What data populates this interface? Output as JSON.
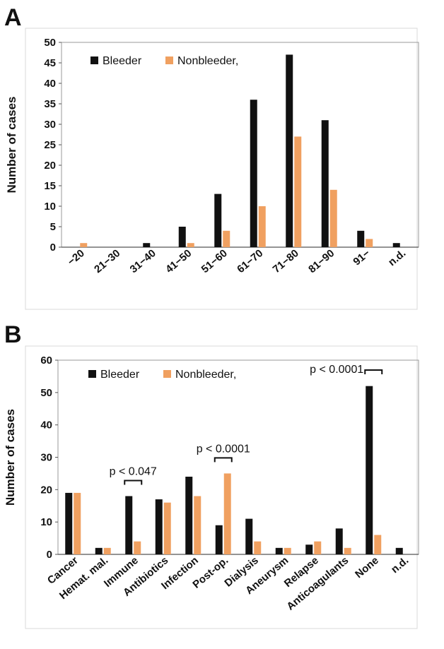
{
  "panels": {
    "a_letter": "A",
    "b_letter": "B"
  },
  "colors": {
    "bleeder": "#111111",
    "nonbleeder": "#F0A060"
  },
  "chart_data": [
    {
      "type": "bar",
      "panel": "A",
      "categories": [
        "−20",
        "21−30",
        "31−40",
        "41−50",
        "51−60",
        "61−70",
        "71−80",
        "81−90",
        "91−",
        "n.d."
      ],
      "series": [
        {
          "name": "Bleeder",
          "values": [
            0,
            0,
            1,
            5,
            13,
            36,
            47,
            31,
            4,
            1
          ]
        },
        {
          "name": "Nonbleeder,",
          "values": [
            1,
            0,
            0,
            1,
            4,
            10,
            27,
            14,
            2,
            0
          ]
        }
      ],
      "ylabel": "Number of cases",
      "ylim": [
        0,
        50
      ],
      "yticks": [
        0,
        5,
        10,
        15,
        20,
        25,
        30,
        35,
        40,
        45,
        50
      ],
      "grid": false,
      "legend": "top-left"
    },
    {
      "type": "bar",
      "panel": "B",
      "categories": [
        "Cancer",
        "Hemat. mal.",
        "Immune",
        "Antibiotics",
        "Infection",
        "Post-op.",
        "Dialysis",
        "Aneurysm",
        "Relapse",
        "Anticoagulants",
        "None",
        "n.d."
      ],
      "series": [
        {
          "name": "Bleeder",
          "values": [
            19,
            2,
            18,
            17,
            24,
            9,
            11,
            2,
            3,
            8,
            52,
            2
          ]
        },
        {
          "name": "Nonbleeder,",
          "values": [
            19,
            2,
            4,
            16,
            18,
            25,
            4,
            2,
            4,
            2,
            6,
            0
          ]
        }
      ],
      "ylabel": "Number of cases",
      "ylim": [
        0,
        60
      ],
      "yticks": [
        0,
        10,
        20,
        30,
        40,
        50,
        60
      ],
      "grid": false,
      "legend": "top-left",
      "annotations": [
        {
          "category": "Immune",
          "text": "p < 0.047"
        },
        {
          "category": "Post-op.",
          "text": "p < 0.0001"
        },
        {
          "category": "None",
          "text": "p < 0.0001"
        }
      ]
    }
  ]
}
